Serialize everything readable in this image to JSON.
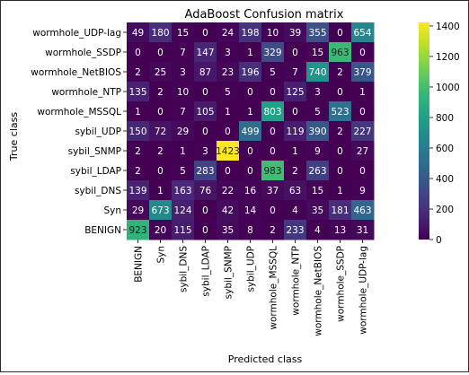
{
  "chart_data": {
    "type": "heatmap",
    "title": "AdaBoost Confusion matrix",
    "xlabel": "Predicted class",
    "ylabel": "True class",
    "colorscale": "viridis",
    "value_range": [
      0,
      1423
    ],
    "colorbar_ticks": [
      0,
      200,
      400,
      600,
      800,
      1000,
      1200,
      1400
    ],
    "x_categories": [
      "BENIGN",
      "Syn",
      "sybil_DNS",
      "sybil_LDAP",
      "sybil_SNMP",
      "sybil_UDP",
      "wormhole_MSSQL",
      "wormhole_NTP",
      "wormhole_NetBIOS",
      "wormhole_SSDP",
      "wormhole_UDP-lag"
    ],
    "y_categories": [
      "wormhole_UDP-lag",
      "wormhole_SSDP",
      "wormhole_NetBIOS",
      "wormhole_NTP",
      "wormhole_MSSQL",
      "sybil_UDP",
      "sybil_SNMP",
      "sybil_LDAP",
      "sybil_DNS",
      "Syn",
      "BENIGN"
    ],
    "values": [
      [
        49,
        180,
        15,
        0,
        24,
        198,
        10,
        39,
        355,
        0,
        654
      ],
      [
        0,
        0,
        7,
        147,
        3,
        1,
        329,
        0,
        15,
        963,
        0
      ],
      [
        2,
        25,
        3,
        87,
        23,
        196,
        5,
        7,
        740,
        2,
        379
      ],
      [
        135,
        2,
        10,
        0,
        5,
        0,
        0,
        125,
        3,
        0,
        1
      ],
      [
        1,
        0,
        7,
        105,
        1,
        1,
        803,
        0,
        5,
        523,
        0
      ],
      [
        150,
        72,
        29,
        0,
        0,
        499,
        0,
        119,
        390,
        2,
        227
      ],
      [
        2,
        2,
        1,
        3,
        1423,
        0,
        0,
        1,
        9,
        0,
        27
      ],
      [
        2,
        0,
        5,
        283,
        0,
        0,
        983,
        2,
        263,
        0,
        0
      ],
      [
        139,
        1,
        163,
        76,
        22,
        16,
        37,
        63,
        15,
        1,
        9
      ],
      [
        29,
        673,
        124,
        0,
        42,
        14,
        0,
        4,
        35,
        181,
        463
      ],
      [
        923,
        20,
        115,
        0,
        35,
        8,
        2,
        233,
        4,
        13,
        31
      ]
    ]
  }
}
